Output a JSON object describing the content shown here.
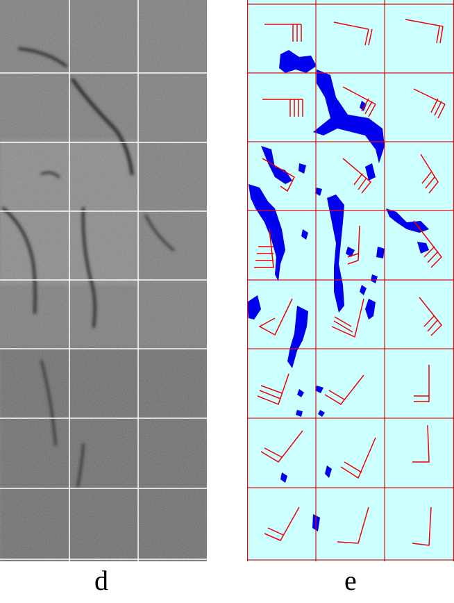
{
  "panels": {
    "d": {
      "label": "d"
    },
    "e": {
      "label": "e"
    }
  },
  "colors": {
    "sar_background": "#777777",
    "slick_dark": "#333333",
    "map_background": "#ccffff",
    "grid_map": "#dd1111",
    "grid_sar": "#ffffff",
    "oil_spill": "#0000ee",
    "wind_barb": "#ee0000"
  },
  "grid": {
    "columns": 3,
    "rows": 8
  }
}
